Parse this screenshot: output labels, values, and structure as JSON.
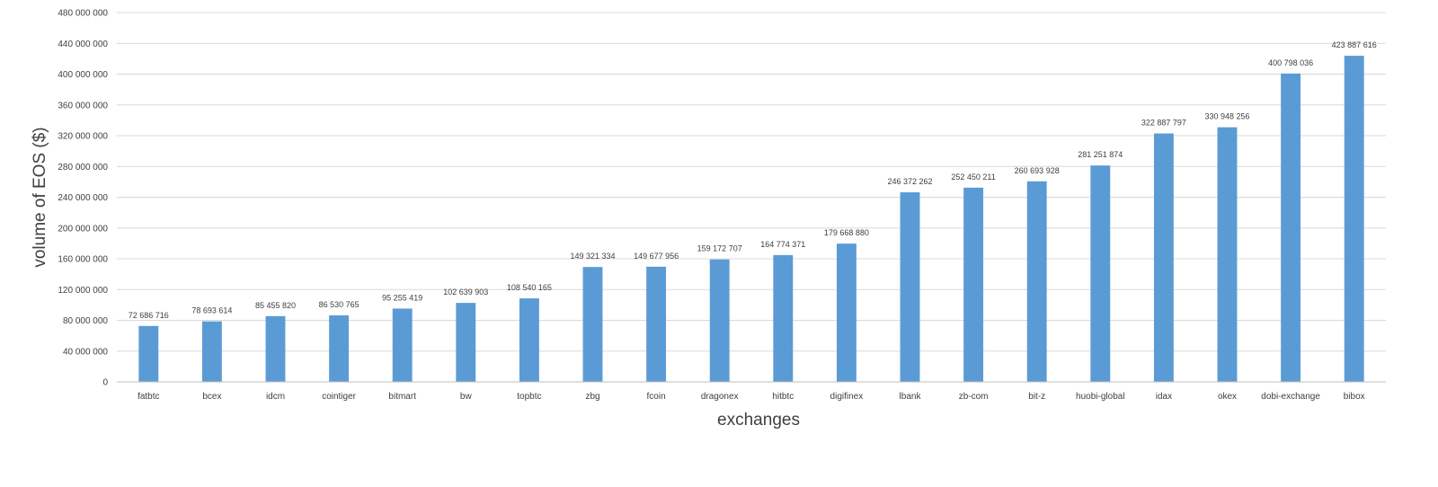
{
  "chart_data": {
    "type": "bar",
    "title": "",
    "xlabel": "exchanges",
    "ylabel": "volume of EOS ($)",
    "ylim": [
      0,
      480000000
    ],
    "ytick_step": 40000000,
    "grid": true,
    "legend": "none",
    "bar_color": "#5b9bd5",
    "categories": [
      "fatbtc",
      "bcex",
      "idcm",
      "cointiger",
      "bitmart",
      "bw",
      "topbtc",
      "zbg",
      "fcoin",
      "dragonex",
      "hitbtc",
      "digifinex",
      "lbank",
      "zb-com",
      "bit-z",
      "huobi-global",
      "idax",
      "okex",
      "dobi-exchange",
      "bibox"
    ],
    "values": [
      72686716,
      78693614,
      85455820,
      86530765,
      95255419,
      102639903,
      108540165,
      149321334,
      149677956,
      159172707,
      164774371,
      179668880,
      246372262,
      252450211,
      260693928,
      281251874,
      322887797,
      330948256,
      400798036,
      423887616
    ]
  }
}
